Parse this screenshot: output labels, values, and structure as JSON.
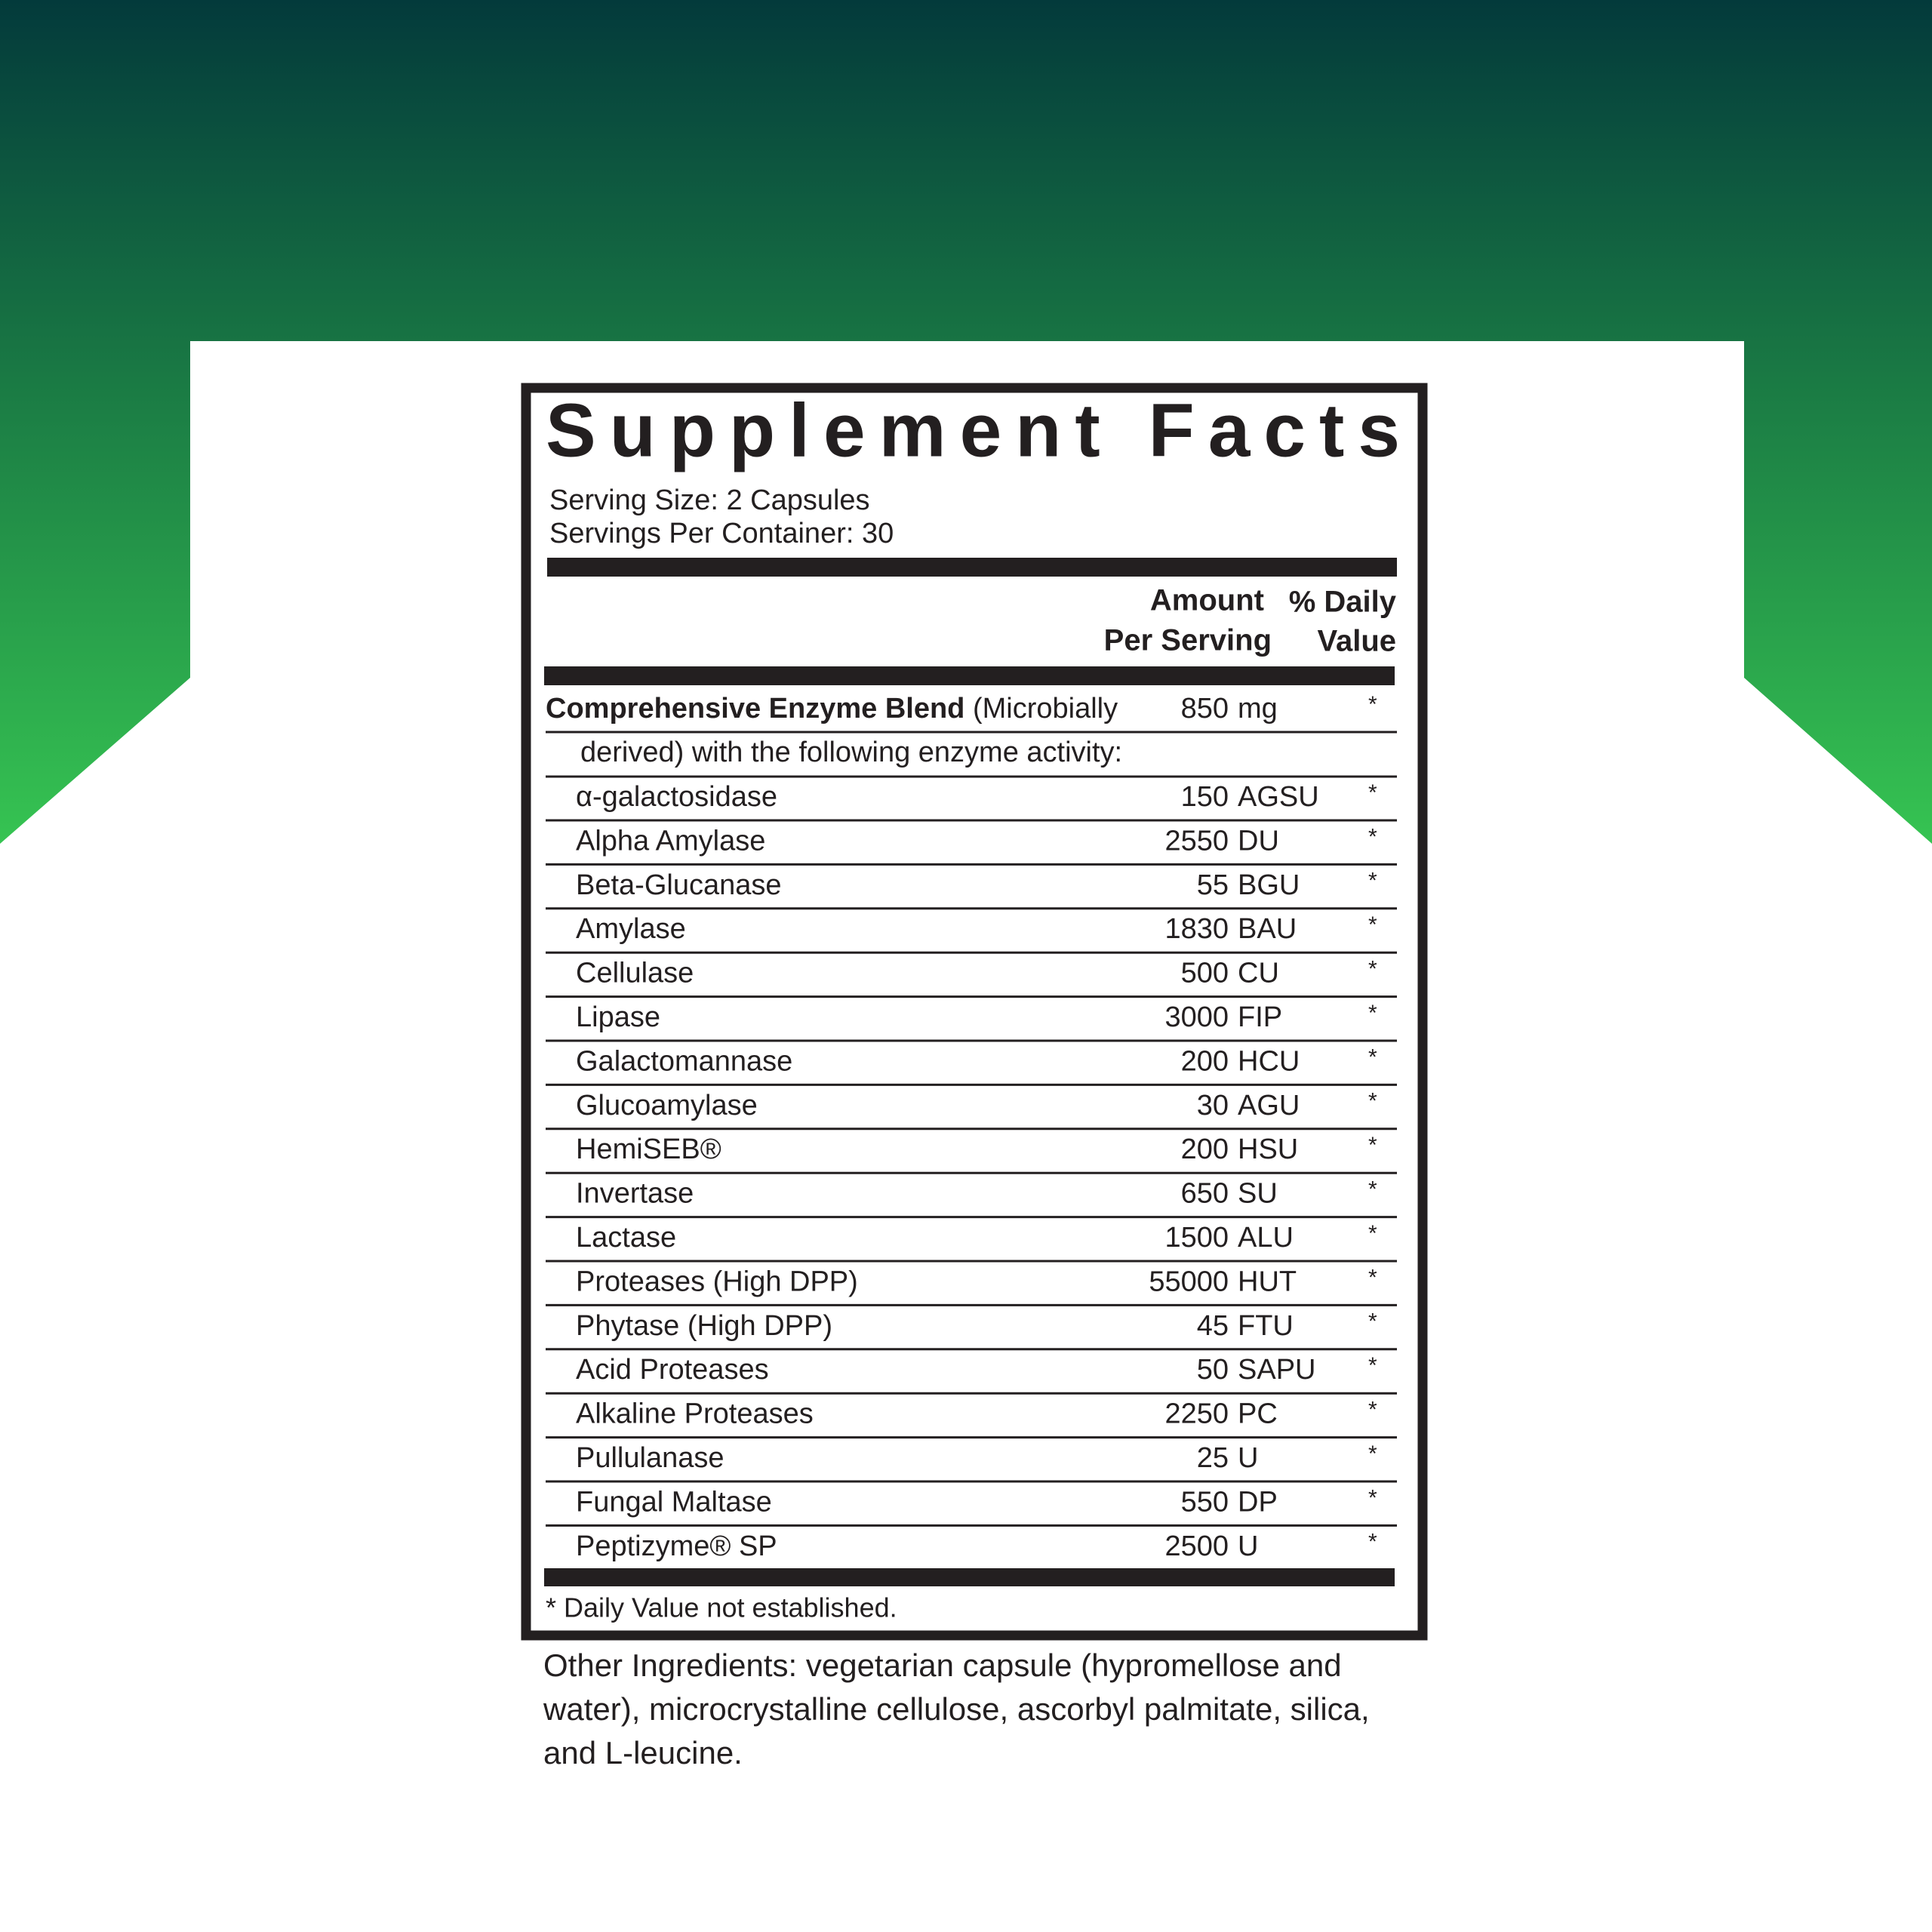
{
  "label": {
    "title": "Supplement Facts",
    "serving_size": "Serving Size: 2 Capsules",
    "servings_per_container": "Servings Per Container: 30",
    "header": {
      "amount": [
        "Amount",
        "Per Serving"
      ],
      "daily_value": [
        "% Daily",
        "Value"
      ]
    },
    "blend": {
      "name": "Comprehensive Enzyme Blend",
      "description": [
        "(Microbially",
        "derived) with the following enzyme activity:"
      ],
      "amount": "850",
      "unit": "mg",
      "dv": "*"
    },
    "rows": [
      {
        "name": "α-galactosidase",
        "amount": "150",
        "unit": "AGSU",
        "dv": "*"
      },
      {
        "name": "Alpha Amylase",
        "amount": "2550",
        "unit": "DU",
        "dv": "*"
      },
      {
        "name": "Beta-Glucanase",
        "amount": "55",
        "unit": "BGU",
        "dv": "*"
      },
      {
        "name": "Amylase",
        "amount": "1830",
        "unit": "BAU",
        "dv": "*"
      },
      {
        "name": "Cellulase",
        "amount": "500",
        "unit": "CU",
        "dv": "*"
      },
      {
        "name": "Lipase",
        "amount": "3000",
        "unit": "FIP",
        "dv": "*"
      },
      {
        "name": "Galactomannase",
        "amount": "200",
        "unit": "HCU",
        "dv": "*"
      },
      {
        "name": "Glucoamylase",
        "amount": "30",
        "unit": "AGU",
        "dv": "*"
      },
      {
        "name": "HemiSEB®",
        "amount": "200",
        "unit": "HSU",
        "dv": "*"
      },
      {
        "name": "Invertase",
        "amount": "650",
        "unit": "SU",
        "dv": "*"
      },
      {
        "name": "Lactase",
        "amount": "1500",
        "unit": "ALU",
        "dv": "*"
      },
      {
        "name": "Proteases (High DPP)",
        "amount": "55000",
        "unit": "HUT",
        "dv": "*"
      },
      {
        "name": "Phytase (High DPP)",
        "amount": "45",
        "unit": "FTU",
        "dv": "*"
      },
      {
        "name": "Acid Proteases",
        "amount": "50",
        "unit": "SAPU",
        "dv": "*"
      },
      {
        "name": "Alkaline Proteases",
        "amount": "2250",
        "unit": "PC",
        "dv": "*"
      },
      {
        "name": "Pullulanase",
        "amount": "25",
        "unit": "U",
        "dv": "*"
      },
      {
        "name": "Fungal Maltase",
        "amount": "550",
        "unit": "DP",
        "dv": "*"
      },
      {
        "name": "Peptizyme® SP",
        "amount": "2500",
        "unit": "U",
        "dv": "*"
      }
    ],
    "footnote": "* Daily Value not established."
  },
  "other_ingredients": "Other Ingredients: vegetarian capsule (hypromellose and water), microcrystalline cellulose, ascorbyl palmitate, silica, and L-leucine."
}
